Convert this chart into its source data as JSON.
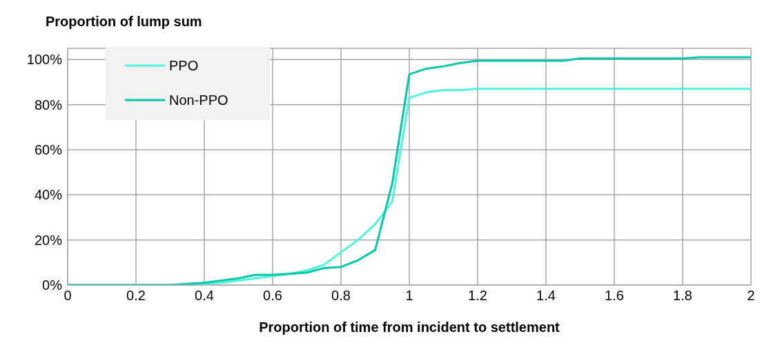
{
  "chart_data": {
    "type": "line",
    "ylabel": "Proportion of lump sum",
    "xlabel": "Proportion of time from incident to settlement",
    "x": [
      0,
      0.05,
      0.1,
      0.15,
      0.2,
      0.25,
      0.3,
      0.35,
      0.4,
      0.45,
      0.5,
      0.55,
      0.6,
      0.65,
      0.7,
      0.75,
      0.8,
      0.85,
      0.9,
      0.95,
      1,
      1.05,
      1.1,
      1.15,
      1.2,
      1.25,
      1.3,
      1.35,
      1.4,
      1.45,
      1.5,
      1.55,
      1.6,
      1.65,
      1.7,
      1.75,
      1.8,
      1.85,
      1.9,
      1.95,
      2
    ],
    "series": [
      {
        "name": "PPO",
        "color": "#4df5dc",
        "values": [
          0,
          0,
          0,
          0,
          0,
          0,
          0,
          0,
          0.5,
          1,
          2,
          3,
          4,
          5,
          6.5,
          9,
          14.5,
          20,
          27,
          37,
          83,
          85.5,
          86.5,
          86.5,
          87,
          87,
          87,
          87,
          87,
          87,
          87,
          87,
          87,
          87,
          87,
          87,
          87,
          87,
          87,
          87,
          87
        ]
      },
      {
        "name": "Non-PPO",
        "color": "#00c8a8",
        "values": [
          0,
          0,
          0,
          0,
          0,
          0,
          0,
          0.5,
          1,
          2,
          3,
          4.5,
          4.5,
          5,
          5.5,
          7.5,
          8,
          11,
          15.5,
          45,
          93.5,
          96,
          97,
          98.5,
          99.5,
          99.5,
          99.5,
          99.5,
          99.5,
          99.5,
          100.5,
          100.5,
          100.5,
          100.5,
          100.5,
          100.5,
          100.5,
          101,
          101,
          101,
          101
        ]
      }
    ],
    "xlim": [
      0,
      2
    ],
    "xticks": [
      0,
      0.2,
      0.4,
      0.6,
      0.8,
      1,
      1.2,
      1.4,
      1.6,
      1.8,
      2
    ],
    "ylim": [
      0,
      105
    ],
    "yticks": [
      {
        "value": 0,
        "label": "0%"
      },
      {
        "value": 20,
        "label": "20%"
      },
      {
        "value": 40,
        "label": "40%"
      },
      {
        "value": 60,
        "label": "60%"
      },
      {
        "value": 80,
        "label": "80%"
      },
      {
        "value": 100,
        "label": "100%"
      }
    ],
    "grid": true,
    "legend": "top left",
    "marker": "none",
    "line_style": "solid"
  }
}
